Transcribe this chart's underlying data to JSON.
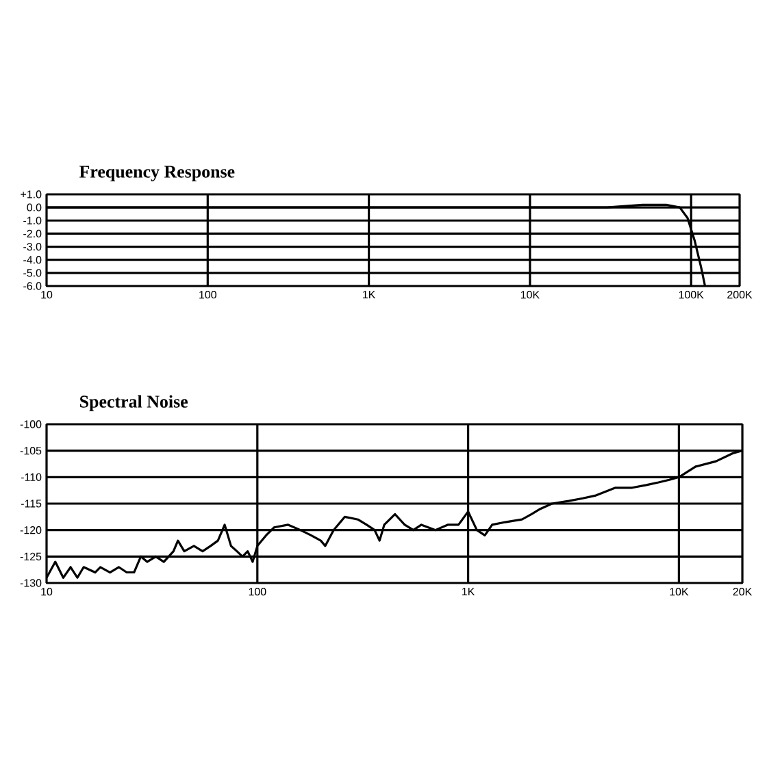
{
  "chart_data": [
    {
      "type": "line",
      "title": "Frequency Response",
      "log": "x",
      "grid": true,
      "xlim": [
        10,
        200000
      ],
      "xticks": [
        10,
        100,
        {
          "value": 1000,
          "label": "1K"
        },
        {
          "value": 10000,
          "label": "10K"
        },
        {
          "value": 100000,
          "label": "100K"
        },
        {
          "value": 200000,
          "label": "200K"
        }
      ],
      "ylim": [
        -6,
        1
      ],
      "yticks": [
        {
          "value": 1,
          "label": "+1.0"
        },
        {
          "value": 0,
          "label": "0.0"
        },
        {
          "value": -1,
          "label": "-1.0"
        },
        {
          "value": -2,
          "label": "-2.0"
        },
        {
          "value": -3,
          "label": "-3.0"
        },
        {
          "value": -4,
          "label": "-4.0"
        },
        {
          "value": -5,
          "label": "-5.0"
        },
        {
          "value": -6,
          "label": "-6.0"
        }
      ],
      "series": [
        {
          "color": "#000000",
          "x": [
            10,
            100,
            1000,
            10000,
            30000,
            50000,
            70000,
            85000,
            95000,
            105000,
            115000,
            122000
          ],
          "values": [
            0,
            0,
            0,
            0,
            0,
            0.2,
            0.2,
            0,
            -0.8,
            -2.5,
            -4.5,
            -6
          ]
        }
      ]
    },
    {
      "type": "line",
      "title": "Spectral Noise",
      "log": "x",
      "grid": true,
      "xlim": [
        10,
        20000
      ],
      "xticks": [
        10,
        100,
        {
          "value": 1000,
          "label": "1K"
        },
        {
          "value": 10000,
          "label": "10K"
        },
        {
          "value": 20000,
          "label": "20K"
        }
      ],
      "ylim": [
        -130,
        -100
      ],
      "yticks": [
        -100,
        -105,
        -110,
        -115,
        -120,
        -125,
        -130
      ],
      "series": [
        {
          "color": "#000000",
          "x": [
            10,
            11,
            12,
            13,
            14,
            15,
            17,
            18,
            20,
            22,
            24,
            26,
            28,
            30,
            33,
            36,
            40,
            42,
            45,
            50,
            55,
            60,
            65,
            70,
            75,
            80,
            85,
            90,
            95,
            100,
            110,
            120,
            140,
            160,
            180,
            200,
            210,
            230,
            260,
            300,
            330,
            360,
            380,
            400,
            450,
            500,
            550,
            600,
            700,
            800,
            900,
            1000,
            1100,
            1200,
            1300,
            1500,
            1800,
            2000,
            2200,
            2500,
            3000,
            3500,
            4000,
            5000,
            6000,
            7000,
            8000,
            9000,
            10000,
            12000,
            15000,
            18000,
            20000
          ],
          "values": [
            -129,
            -126,
            -129,
            -127,
            -129,
            -127,
            -128,
            -127,
            -128,
            -127,
            -128,
            -128,
            -125,
            -126,
            -125,
            -126,
            -124,
            -122,
            -124,
            -123,
            -124,
            -123,
            -122,
            -119,
            -123,
            -124,
            -125,
            -124,
            -126,
            -123,
            -121,
            -119.5,
            -119,
            -120,
            -121,
            -122,
            -123,
            -120,
            -117.5,
            -118,
            -119,
            -120,
            -122,
            -119,
            -117,
            -119,
            -120,
            -119,
            -120,
            -119,
            -119,
            -116.5,
            -120,
            -121,
            -119,
            -118.5,
            -118,
            -117,
            -116,
            -115,
            -114.5,
            -114,
            -113.5,
            -112,
            -112,
            -111.5,
            -111,
            -110.5,
            -110,
            -108,
            -107,
            -105.5,
            -105
          ]
        }
      ]
    }
  ]
}
